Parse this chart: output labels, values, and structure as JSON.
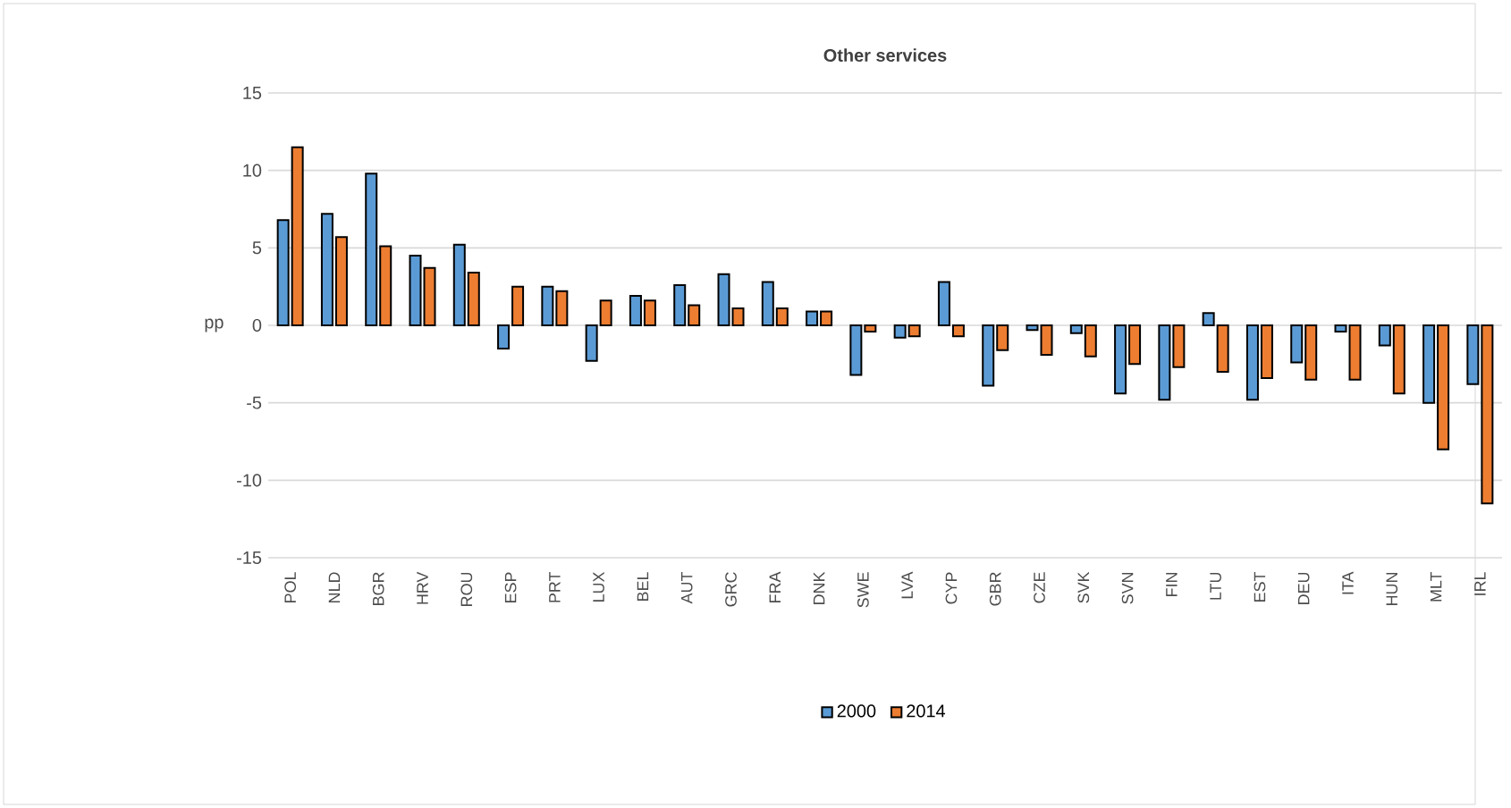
{
  "chart_data": {
    "type": "bar",
    "title": "Other services",
    "ylabel": "pp",
    "categories": [
      "POL",
      "NLD",
      "BGR",
      "HRV",
      "ROU",
      "ESP",
      "PRT",
      "LUX",
      "BEL",
      "AUT",
      "GRC",
      "FRA",
      "DNK",
      "SWE",
      "LVA",
      "CYP",
      "GBR",
      "CZE",
      "SVK",
      "SVN",
      "FIN",
      "LTU",
      "EST",
      "DEU",
      "ITA",
      "HUN",
      "MLT",
      "IRL"
    ],
    "series": [
      {
        "name": "2000",
        "color": "#5b9bd5",
        "values": [
          6.8,
          7.2,
          9.8,
          4.5,
          5.2,
          -1.5,
          2.5,
          -2.3,
          1.9,
          2.6,
          3.3,
          2.8,
          0.9,
          -3.2,
          -0.8,
          2.8,
          -3.9,
          -0.3,
          -0.5,
          -4.4,
          -4.8,
          0.8,
          -4.8,
          -2.4,
          -0.4,
          -1.3,
          -5.0,
          -3.8
        ]
      },
      {
        "name": "2014",
        "color": "#ed7d31",
        "values": [
          11.5,
          5.7,
          5.1,
          3.7,
          3.4,
          2.5,
          2.2,
          1.6,
          1.6,
          1.3,
          1.1,
          1.1,
          0.9,
          -0.4,
          -0.7,
          -0.7,
          -1.6,
          -1.9,
          -2.0,
          -2.5,
          -2.7,
          -3.0,
          -3.4,
          -3.5,
          -3.5,
          -4.4,
          -8.0,
          -11.5
        ]
      }
    ],
    "ylim": [
      -15,
      15
    ],
    "yticks": [
      -15,
      -10,
      -5,
      0,
      5,
      10,
      15
    ],
    "grid": "y",
    "legend": "bottom"
  }
}
